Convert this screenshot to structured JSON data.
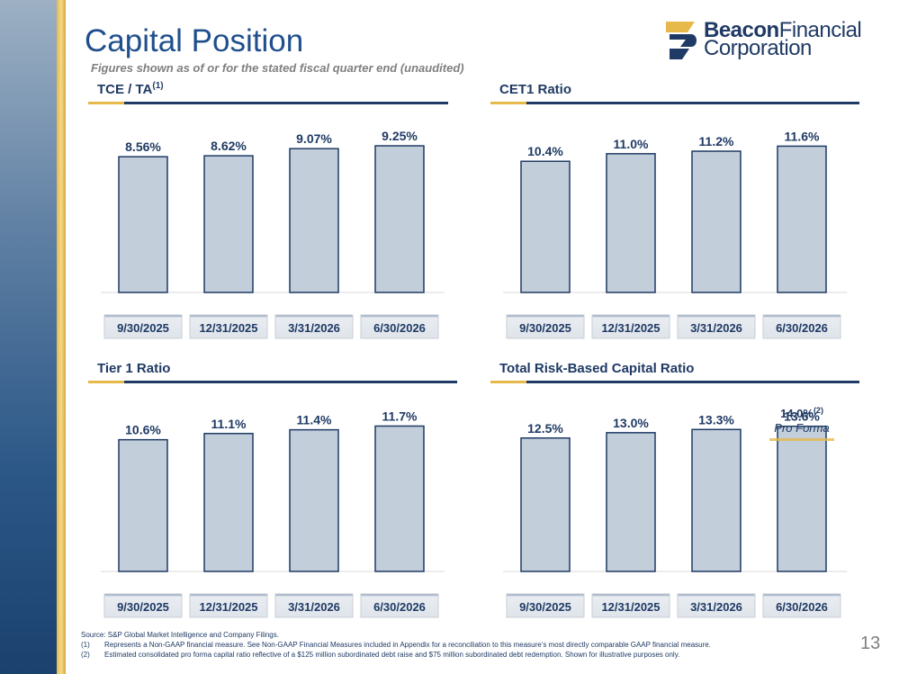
{
  "page": {
    "title": "Capital Position",
    "subtitle": "Figures shown as of or for the stated fiscal quarter end (unaudited)",
    "page_number": "13"
  },
  "logo": {
    "line1_bold": "Beacon",
    "line1_rest": "Financial",
    "line2": "Corporation"
  },
  "footnotes": {
    "source": "Source: S&P Global Market Intelligence and Company Filings.",
    "items": [
      {
        "num": "(1)",
        "text": "Represents a Non-GAAP financial measure. See Non-GAAP Financial Measures included in Appendix for a reconciliation to this measure’s most directly comparable GAAP financial measure."
      },
      {
        "num": "(2)",
        "text": "Estimated consolidated pro forma capital ratio reflective of a $125 million subordinated debt raise and $75 million subordinated debt redemption. Shown for illustrative purposes only."
      }
    ]
  },
  "colors": {
    "bar_fill": "#c3cedb",
    "bar_stroke": "#1f3a64",
    "navy": "#1f3a64",
    "gold": "#e6b94a"
  },
  "chart_data": [
    {
      "type": "bar",
      "title": "TCE / TA",
      "title_note": "(1)",
      "categories": [
        "9/30/2025",
        "12/31/2025",
        "3/31/2026",
        "6/30/2026"
      ],
      "values": [
        8.56,
        8.62,
        9.07,
        9.25
      ],
      "labels": [
        "8.56%",
        "8.62%",
        "9.07%",
        "9.25%"
      ],
      "ylim": [
        0,
        10.5
      ]
    },
    {
      "type": "bar",
      "title": "CET1 Ratio",
      "title_note": "",
      "categories": [
        "9/30/2025",
        "12/31/2025",
        "3/31/2026",
        "6/30/2026"
      ],
      "values": [
        10.4,
        11.0,
        11.2,
        11.6
      ],
      "labels": [
        "10.4%",
        "11.0%",
        "11.2%",
        "11.6%"
      ],
      "ylim": [
        0,
        13.2
      ]
    },
    {
      "type": "bar",
      "title": "Tier 1 Ratio",
      "title_note": "",
      "categories": [
        "9/30/2025",
        "12/31/2025",
        "3/31/2026",
        "6/30/2026"
      ],
      "values": [
        10.6,
        11.1,
        11.4,
        11.7
      ],
      "labels": [
        "10.6%",
        "11.1%",
        "11.4%",
        "11.7%"
      ],
      "ylim": [
        0,
        13.4
      ]
    },
    {
      "type": "bar",
      "title": "Total Risk-Based Capital Ratio",
      "title_note": "",
      "categories": [
        "9/30/2025",
        "12/31/2025",
        "3/31/2026",
        "6/30/2026"
      ],
      "values": [
        12.5,
        13.0,
        13.3,
        13.6
      ],
      "labels": [
        "12.5%",
        "13.0%",
        "13.3%",
        "13.6%"
      ],
      "ylim": [
        0,
        15.6
      ],
      "annotation": {
        "value": "14.0%",
        "note": "(2)",
        "label": "Pro Forma",
        "category_index": 3
      }
    }
  ]
}
